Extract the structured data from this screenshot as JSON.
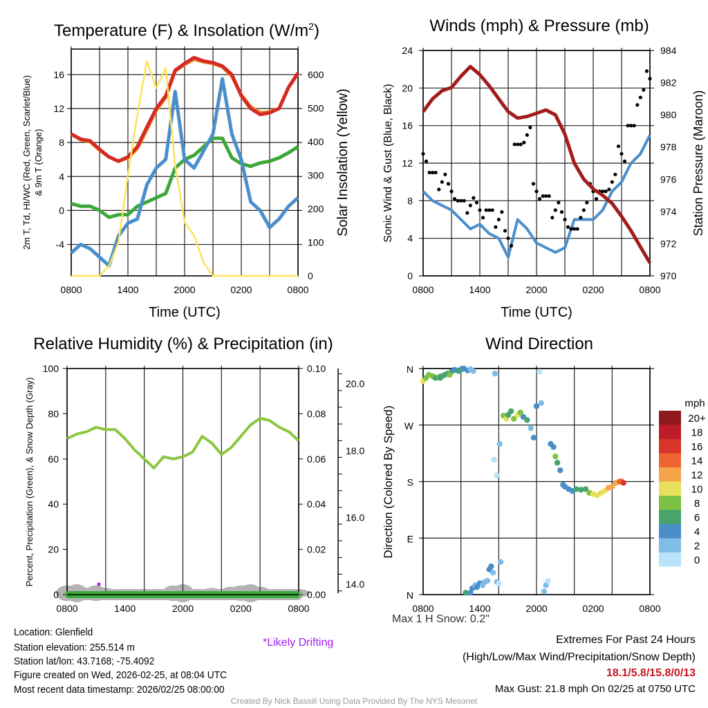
{
  "chart_data": [
    {
      "type": "line",
      "title": "Temperature (F) & Insolation (W/m²)",
      "title_main": "Temperature (F) & Insolation (W/m",
      "title_sup": "2",
      "title_end": ")",
      "xlabel": "Time (UTC)",
      "ylabel": "2m T, Td, HI/WC (Red, Green, Scarlet/Blue)",
      "ylabel2": "& 9m T (Orange)",
      "ylabel_right": "Solar Insolation (Yellow)",
      "xticks": [
        "0800",
        "1400",
        "2000",
        "0200",
        "0800"
      ],
      "yticks": [
        "-4",
        "0",
        "4",
        "8",
        "12",
        "16"
      ],
      "yticks_right": [
        "0",
        "100",
        "200",
        "300",
        "400",
        "500",
        "600"
      ],
      "ylim": [
        -7.7,
        19
      ],
      "ylim_right": [
        0,
        676
      ],
      "x_hours": [
        0,
        1,
        2,
        3,
        4,
        5,
        6,
        7,
        8,
        9,
        10,
        11,
        12,
        13,
        14,
        15,
        16,
        17,
        18,
        19,
        20,
        21,
        22,
        23,
        24
      ],
      "series": [
        {
          "name": "9m T",
          "color": "#f28a2a",
          "values": [
            9,
            8.3,
            8.1,
            7.1,
            6.3,
            5.8,
            6.2,
            7.3,
            9.5,
            11.8,
            13.3,
            16.4,
            17.2,
            17.8,
            17.5,
            17.3,
            16.9,
            15.8,
            13.6,
            12.2,
            11.5,
            11.6,
            12,
            14.5,
            16.1
          ]
        },
        {
          "name": "2m T",
          "color": "#d42a24",
          "values": [
            9,
            8.4,
            8.2,
            7.2,
            6.3,
            5.8,
            6.3,
            7.5,
            9.8,
            12,
            13.5,
            16.5,
            17.3,
            18,
            17.6,
            17.4,
            17,
            16,
            13.5,
            12,
            11.3,
            11.5,
            12,
            14.5,
            16.2
          ]
        },
        {
          "name": "Td",
          "color": "#3ca83a",
          "values": [
            0.8,
            0.5,
            0.5,
            0,
            -0.8,
            -0.5,
            -0.5,
            0.5,
            1,
            1.5,
            2,
            5,
            6,
            6.5,
            7.5,
            8.5,
            8.5,
            6.2,
            5.5,
            5.2,
            5.6,
            5.8,
            6.2,
            6.8,
            7.5
          ]
        },
        {
          "name": "WC",
          "color": "#4a8fcb",
          "values": [
            -5,
            -4,
            -4.5,
            -5.5,
            -6.5,
            -3,
            -1.5,
            -1,
            3,
            5,
            6,
            14,
            6,
            5,
            7,
            9,
            15.5,
            9,
            6,
            1,
            0,
            -2,
            -1,
            0.5,
            1.5
          ]
        },
        {
          "name": "Solar",
          "axis": "right",
          "color": "#fce35a",
          "values": [
            0,
            0,
            0,
            0,
            30,
            100,
            300,
            480,
            640,
            560,
            620,
            330,
            160,
            120,
            40,
            0,
            0,
            0,
            0,
            0,
            0,
            0,
            0,
            0,
            0
          ]
        }
      ]
    },
    {
      "type": "line",
      "title": "Winds (mph) & Pressure (mb)",
      "xlabel": "Time (UTC)",
      "ylabel": "Sonic Wind & Gust (Blue, Black)",
      "ylabel_right": "Station Pressure (Maroon)",
      "xticks": [
        "0800",
        "1400",
        "2000",
        "0200",
        "0800"
      ],
      "yticks": [
        "0",
        "4",
        "8",
        "12",
        "16",
        "20",
        "24"
      ],
      "yticks_right": [
        "970",
        "972",
        "974",
        "976",
        "978",
        "980",
        "982",
        "984"
      ],
      "ylim": [
        0,
        24
      ],
      "ylim_right": [
        970,
        984
      ],
      "series": [
        {
          "name": "Wind",
          "color": "#4a8fcb",
          "values": [
            9,
            8,
            7.5,
            7,
            6,
            5,
            5.5,
            4.5,
            4,
            2,
            6,
            5,
            3.5,
            3,
            2.5,
            3,
            6,
            6,
            6,
            7,
            9,
            10,
            12,
            13,
            15
          ]
        },
        {
          "name": "Gust",
          "color": "#000000",
          "values": [
            13,
            11,
            10,
            9,
            8,
            7.5,
            7,
            7,
            6,
            4,
            14,
            15,
            9,
            8.5,
            7,
            6,
            5,
            7,
            9,
            9,
            10,
            13,
            16,
            19,
            21
          ]
        },
        {
          "name": "Pressure",
          "axis": "right",
          "color": "#a11d1d",
          "values": [
            980.2,
            981,
            981.5,
            981.7,
            982.4,
            983,
            982.5,
            981.8,
            981,
            980.2,
            979.8,
            979.9,
            980.1,
            980.3,
            980,
            978.8,
            977,
            976,
            975.4,
            975,
            974.5,
            973.7,
            972.8,
            971.8,
            970.8
          ]
        }
      ]
    },
    {
      "type": "line",
      "title": "Relative Humidity (%) & Precipitation (in)",
      "ylabel": "Percent, Precipitation (Green), & Snow Depth (Gray)",
      "xticks": [
        "0800",
        "1400",
        "2000",
        "0200",
        "0800"
      ],
      "yticks": [
        "0",
        "20",
        "40",
        "60",
        "80",
        "100"
      ],
      "yticks_right": [
        "0.00",
        "0.02",
        "0.04",
        "0.06",
        "0.08",
        "0.10"
      ],
      "yticks_snow": [
        "14.0",
        "16.0",
        "18.0",
        "20.0"
      ],
      "ylim": [
        0,
        100
      ],
      "series": [
        {
          "name": "RH",
          "color": "#8cc63f",
          "values": [
            69,
            71,
            72,
            74,
            73,
            73,
            69,
            64,
            60,
            56,
            61,
            60,
            61,
            63,
            70,
            67,
            62,
            65,
            70,
            75,
            78,
            77,
            74,
            72,
            68
          ]
        },
        {
          "name": "Precipitation",
          "color": "#3ca83a",
          "values": [
            0,
            0,
            0,
            0,
            0,
            0,
            0,
            0,
            0,
            0,
            0,
            0,
            0,
            0,
            0,
            0,
            0,
            0,
            0,
            0,
            0,
            0,
            0,
            0,
            0
          ]
        }
      ],
      "annotations": [
        "Max 1 H Snow: 0.2\"",
        "*Likely Drifting"
      ]
    },
    {
      "type": "scatter",
      "title": "Wind Direction",
      "ylabel": "Direction (Colored By Speed)",
      "xticks": [
        "0800",
        "1400",
        "2000",
        "0200",
        "0800"
      ],
      "yticks": [
        "N",
        "E",
        "S",
        "W",
        "N"
      ],
      "legend_title": "mph",
      "legend": [
        {
          "label": "20+",
          "color": "#8e1a1f"
        },
        {
          "label": "18",
          "color": "#bd1d28"
        },
        {
          "label": "16",
          "color": "#d9342a"
        },
        {
          "label": "14",
          "color": "#ee6430"
        },
        {
          "label": "12",
          "color": "#f5a64a"
        },
        {
          "label": "10",
          "color": "#e6e05c"
        },
        {
          "label": "8",
          "color": "#7dc245"
        },
        {
          "label": "6",
          "color": "#46a46c"
        },
        {
          "label": "4",
          "color": "#4a8ec9"
        },
        {
          "label": "2",
          "color": "#7fbce6"
        },
        {
          "label": "0",
          "color": "#b8e3f8"
        }
      ],
      "points": [
        [
          0,
          340,
          11
        ],
        [
          0.3,
          345,
          9
        ],
        [
          0.6,
          350,
          8
        ],
        [
          1,
          348,
          8
        ],
        [
          1.3,
          345,
          7
        ],
        [
          1.7,
          347,
          8
        ],
        [
          2,
          348,
          7
        ],
        [
          2.3,
          350,
          6
        ],
        [
          2.6,
          352,
          7
        ],
        [
          3,
          355,
          6
        ],
        [
          3.3,
          358,
          5
        ],
        [
          3.6,
          357,
          4
        ],
        [
          4,
          358,
          5
        ],
        [
          4.3,
          360,
          4
        ],
        [
          4.7,
          357,
          4
        ],
        [
          5,
          359,
          3
        ],
        [
          5.3,
          356,
          3
        ],
        [
          1.8,
          345,
          6
        ],
        [
          2.8,
          350,
          8
        ],
        [
          3.8,
          356,
          6
        ],
        [
          4.5,
          3,
          6
        ],
        [
          5,
          3,
          4
        ],
        [
          5.2,
          10,
          4
        ],
        [
          5.5,
          15,
          3
        ],
        [
          5.7,
          12,
          4
        ],
        [
          6,
          18,
          4
        ],
        [
          6.3,
          15,
          3
        ],
        [
          6.5,
          20,
          2
        ],
        [
          6.8,
          22,
          3
        ],
        [
          7,
          40,
          4
        ],
        [
          7.2,
          45,
          4
        ],
        [
          7.4,
          35,
          3
        ],
        [
          7.8,
          20,
          2
        ],
        [
          8,
          18,
          1
        ],
        [
          8.2,
          52,
          3
        ],
        [
          7.5,
          215,
          1
        ],
        [
          7.6,
          352,
          3
        ],
        [
          7.8,
          190,
          1
        ],
        [
          8.1,
          240,
          3
        ],
        [
          8.5,
          285,
          8
        ],
        [
          8.8,
          280,
          11
        ],
        [
          9,
          286,
          7
        ],
        [
          9.3,
          292,
          6
        ],
        [
          9.6,
          280,
          9
        ],
        [
          10,
          286,
          10
        ],
        [
          10.3,
          290,
          8
        ],
        [
          10.6,
          283,
          5
        ],
        [
          11,
          278,
          7
        ],
        [
          11.4,
          265,
          2
        ],
        [
          11.7,
          250,
          4
        ],
        [
          12,
          300,
          4
        ],
        [
          12.3,
          355,
          1
        ],
        [
          12.5,
          305,
          2
        ],
        [
          12.8,
          5,
          2
        ],
        [
          13,
          15,
          2
        ],
        [
          13.2,
          22,
          1
        ],
        [
          13.5,
          240,
          5
        ],
        [
          13.8,
          235,
          4
        ],
        [
          14,
          220,
          8
        ],
        [
          14.2,
          210,
          7
        ],
        [
          14.5,
          198,
          4
        ],
        [
          14.8,
          175,
          5
        ],
        [
          15,
          172,
          4
        ],
        [
          15.4,
          168,
          4
        ],
        [
          15.8,
          165,
          4
        ],
        [
          16.2,
          168,
          6
        ],
        [
          16.7,
          167,
          6
        ],
        [
          17.2,
          168,
          7
        ],
        [
          17.6,
          162,
          8
        ],
        [
          18,
          160,
          10
        ],
        [
          18.4,
          158,
          10
        ],
        [
          18.8,
          162,
          11
        ],
        [
          19.2,
          165,
          10
        ],
        [
          19.6,
          170,
          12
        ],
        [
          20,
          172,
          12
        ],
        [
          20.4,
          178,
          13
        ],
        [
          20.8,
          180,
          14
        ],
        [
          21,
          180,
          15
        ],
        [
          21.2,
          178,
          16
        ]
      ]
    }
  ],
  "footer": {
    "location": "Location: Glenfield",
    "elevation": "Station elevation: 255.514 m",
    "latlon": "Station lat/lon: 43.7168; -75.4092",
    "created": "Figure created on Wed, 2026-02-25, at 08:04 UTC",
    "recent": "Most recent data timestamp: 2026/02/25 08:00:00",
    "extremes_title": "Extremes For Past 24 Hours",
    "extremes_sub": "(High/Low/Max Wind/Precipitation/Snow Depth)",
    "extremes_values": "18.1/5.8/15.8/0/13",
    "max_gust": "Max Gust: 21.8 mph On 02/25 at 0750 UTC",
    "credit": "Created By Nick Bassill Using Data Provided By The NYS Mesonet"
  }
}
